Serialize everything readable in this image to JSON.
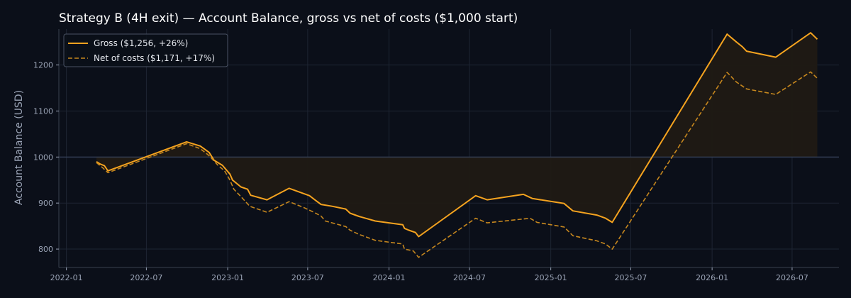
{
  "chart_data": {
    "type": "line",
    "title": "Strategy B (4H exit) — Account Balance, gross vs net of costs ($1,000 start)",
    "xlabel": "",
    "ylabel": "Account Balance (USD)",
    "ylim": [
      760,
      1278
    ],
    "xlim": [
      "2021-12-15",
      "2026-10-15"
    ],
    "grid": true,
    "legend": "top-left",
    "baseline": 1000,
    "x_ticks": [
      "2022-01",
      "2022-07",
      "2023-01",
      "2023-07",
      "2024-01",
      "2024-07",
      "2025-01",
      "2025-07",
      "2026-01",
      "2026-07"
    ],
    "y_ticks": [
      800,
      900,
      1000,
      1100,
      1200
    ],
    "colors": {
      "gross": "#f5a31f",
      "net": "#c6871e",
      "fill": "#201a14",
      "baseline": "#3b4863",
      "grid": "#1e2533",
      "background": "#0b0f19"
    },
    "series": [
      {
        "name": "Gross ($1,256, +26%)",
        "style": "solid",
        "points": [
          [
            "2022-03-10",
            990
          ],
          [
            "2022-03-18",
            985
          ],
          [
            "2022-03-28",
            981
          ],
          [
            "2022-04-05",
            970
          ],
          [
            "2022-09-30",
            1033
          ],
          [
            "2022-10-31",
            1024
          ],
          [
            "2022-11-20",
            1010
          ],
          [
            "2022-12-01",
            993
          ],
          [
            "2022-12-20",
            982
          ],
          [
            "2023-01-06",
            963
          ],
          [
            "2023-01-12",
            950
          ],
          [
            "2023-01-31",
            935
          ],
          [
            "2023-02-15",
            930
          ],
          [
            "2023-02-22",
            917
          ],
          [
            "2023-03-31",
            907
          ],
          [
            "2023-05-20",
            932
          ],
          [
            "2023-07-05",
            916
          ],
          [
            "2023-07-20",
            905
          ],
          [
            "2023-07-31",
            897
          ],
          [
            "2023-08-25",
            893
          ],
          [
            "2023-09-25",
            887
          ],
          [
            "2023-10-05",
            878
          ],
          [
            "2023-10-25",
            871
          ],
          [
            "2023-12-01",
            861
          ],
          [
            "2024-02-01",
            853
          ],
          [
            "2024-02-05",
            845
          ],
          [
            "2024-02-15",
            841
          ],
          [
            "2024-03-01",
            836
          ],
          [
            "2024-03-08",
            827
          ],
          [
            "2024-07-15",
            916
          ],
          [
            "2024-08-10",
            907
          ],
          [
            "2024-10-31",
            919
          ],
          [
            "2024-11-20",
            910
          ],
          [
            "2025-01-31",
            899
          ],
          [
            "2025-02-20",
            883
          ],
          [
            "2025-04-15",
            874
          ],
          [
            "2025-05-05",
            867
          ],
          [
            "2025-05-20",
            858
          ],
          [
            "2026-02-04",
            1267
          ],
          [
            "2026-02-25",
            1250
          ],
          [
            "2026-03-10",
            1240
          ],
          [
            "2026-03-20",
            1230
          ],
          [
            "2026-05-25",
            1217
          ],
          [
            "2026-08-12",
            1270
          ],
          [
            "2026-08-27",
            1256
          ]
        ]
      },
      {
        "name": "Net of costs ($1,171, +17%)",
        "style": "dashed",
        "points": [
          [
            "2022-03-10",
            988
          ],
          [
            "2022-03-25",
            976
          ],
          [
            "2022-04-05",
            966
          ],
          [
            "2022-09-30",
            1029
          ],
          [
            "2022-10-31",
            1018
          ],
          [
            "2022-11-20",
            1003
          ],
          [
            "2022-12-10",
            982
          ],
          [
            "2022-12-25",
            970
          ],
          [
            "2023-01-06",
            950
          ],
          [
            "2023-01-15",
            930
          ],
          [
            "2023-02-01",
            913
          ],
          [
            "2023-02-20",
            893
          ],
          [
            "2023-03-31",
            880
          ],
          [
            "2023-05-20",
            903
          ],
          [
            "2023-06-25",
            889
          ],
          [
            "2023-07-15",
            880
          ],
          [
            "2023-07-31",
            872
          ],
          [
            "2023-08-10",
            861
          ],
          [
            "2023-09-25",
            849
          ],
          [
            "2023-10-05",
            841
          ],
          [
            "2023-10-25",
            832
          ],
          [
            "2023-12-01",
            819
          ],
          [
            "2024-02-01",
            811
          ],
          [
            "2024-02-05",
            800
          ],
          [
            "2024-02-25",
            796
          ],
          [
            "2024-03-08",
            782
          ],
          [
            "2024-07-15",
            867
          ],
          [
            "2024-08-10",
            857
          ],
          [
            "2024-11-15",
            867
          ],
          [
            "2024-12-01",
            858
          ],
          [
            "2025-01-31",
            848
          ],
          [
            "2025-02-20",
            829
          ],
          [
            "2025-04-15",
            818
          ],
          [
            "2025-05-05",
            811
          ],
          [
            "2025-05-20",
            800
          ],
          [
            "2026-02-04",
            1184
          ],
          [
            "2026-02-25",
            1163
          ],
          [
            "2026-03-20",
            1148
          ],
          [
            "2026-05-25",
            1136
          ],
          [
            "2026-08-12",
            1185
          ],
          [
            "2026-08-27",
            1171
          ]
        ]
      }
    ]
  }
}
